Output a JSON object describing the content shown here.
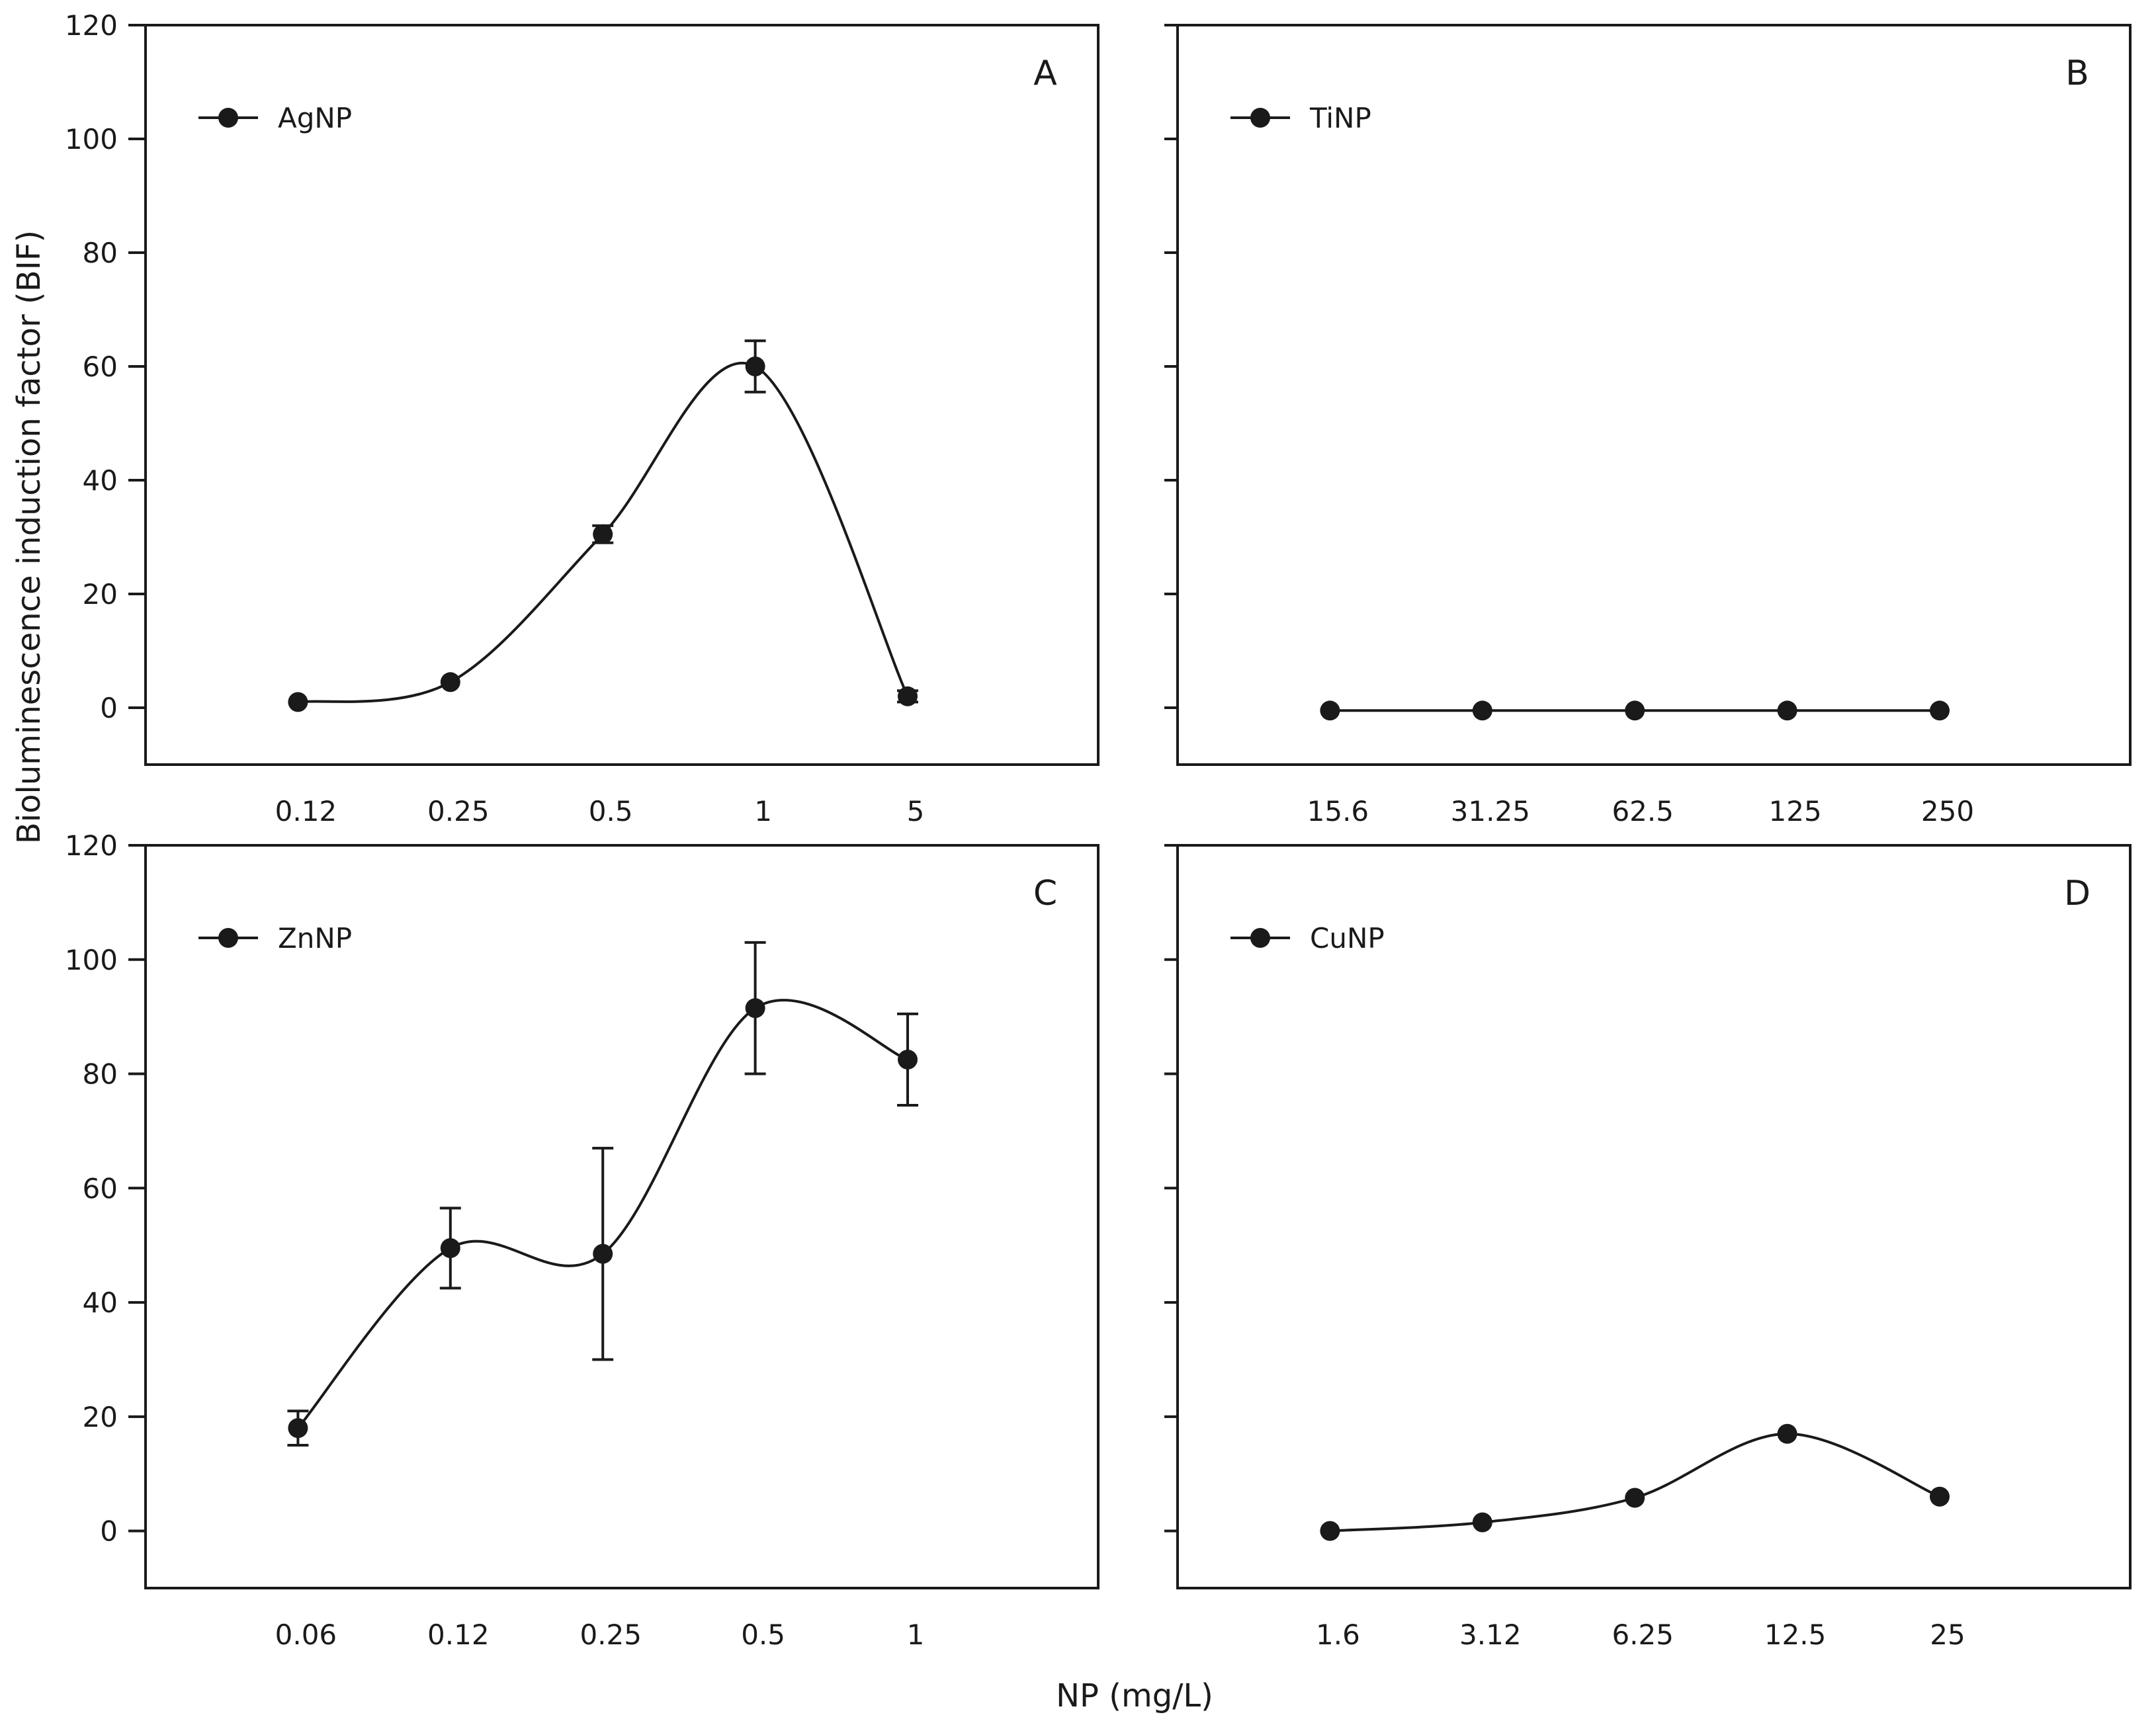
{
  "y_axis_label": "Bioluminescence induction factor (BIF)",
  "x_axis_label": "NP (mg/L)",
  "colors": {
    "line": "#1a1a1a",
    "marker": "#1a1a1a",
    "frame": "#1a1a1a",
    "background": "#ffffff"
  },
  "chart_data": [
    {
      "type": "line",
      "panel": "A",
      "legend": "AgNP",
      "categories": [
        "0.12",
        "0.25",
        "0.5",
        "1",
        "5"
      ],
      "values": [
        1,
        4.5,
        30.5,
        60,
        2
      ],
      "errors": [
        0,
        0,
        1.5,
        4.5,
        1
      ],
      "ylim": [
        -10,
        120
      ],
      "yticks": [
        0,
        20,
        40,
        60,
        80,
        100,
        120
      ],
      "ytick_labels": [
        "0",
        "20",
        "40",
        "60",
        "80",
        "100",
        "120"
      ]
    },
    {
      "type": "line",
      "panel": "B",
      "legend": "TiNP",
      "categories": [
        "15.6",
        "31.25",
        "62.5",
        "125",
        "250"
      ],
      "values": [
        -0.5,
        -0.5,
        -0.5,
        -0.5,
        -0.5
      ],
      "errors": [
        0,
        0,
        0,
        0,
        0
      ],
      "ylim": [
        -10,
        120
      ],
      "yticks": [
        0,
        20,
        40,
        60,
        80,
        100,
        120
      ],
      "ytick_labels": []
    },
    {
      "type": "line",
      "panel": "C",
      "legend": "ZnNP",
      "categories": [
        "0.06",
        "0.12",
        "0.25",
        "0.5",
        "1"
      ],
      "values": [
        18,
        49.5,
        48.5,
        91.5,
        82.5
      ],
      "errors": [
        3,
        7,
        18.5,
        11.5,
        8
      ],
      "ylim": [
        -10,
        120
      ],
      "yticks": [
        0,
        20,
        40,
        60,
        80,
        100,
        120
      ],
      "ytick_labels": [
        "0",
        "20",
        "40",
        "60",
        "80",
        "100",
        "120"
      ]
    },
    {
      "type": "line",
      "panel": "D",
      "legend": "CuNP",
      "categories": [
        "1.6",
        "3.12",
        "6.25",
        "12.5",
        "25"
      ],
      "values": [
        0,
        1.5,
        5.8,
        17,
        6
      ],
      "errors": [
        0,
        0,
        0,
        0,
        0
      ],
      "ylim": [
        -10,
        120
      ],
      "yticks": [
        0,
        20,
        40,
        60,
        80,
        100,
        120
      ],
      "ytick_labels": []
    }
  ]
}
